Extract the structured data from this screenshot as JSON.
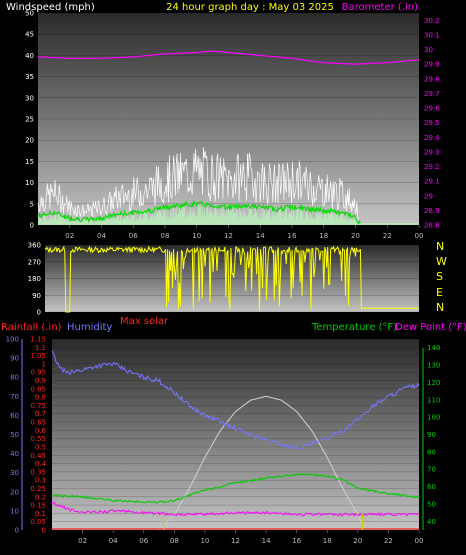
{
  "header": {
    "left_label": "Windspeed (mph)",
    "center_label": "24 hour graph day : May 03 2025",
    "right_label": "Barometer (.in)"
  },
  "bottom_header": {
    "rainfall_label": "Rainfall (.in)",
    "humidity_label": "Humidity",
    "max_solar_label": "Max solar",
    "temperature_label": "Temperature (°F)",
    "dewpoint_label": "Dew Point (°F)"
  },
  "compass": [
    "N",
    "W",
    "S",
    "E",
    "N"
  ],
  "colors": {
    "windspeed": "#ffffff",
    "gust": "#c8c8c8",
    "wind_avg": "#00dd00",
    "wind_fill": "#b8f0b8",
    "barometer": "#ff00ff",
    "direction": "#ffff00",
    "rainfall": "#ff2222",
    "humidity": "#7777ff",
    "temperature": "#00cc00",
    "dewpoint": "#ff00ff",
    "solar": "#cccccc"
  },
  "chart_data": [
    {
      "type": "line",
      "x_ticks": [
        "02",
        "04",
        "06",
        "08",
        "10",
        "12",
        "14",
        "16",
        "18",
        "20",
        "22",
        "00"
      ],
      "y_left_ticks": [
        "0",
        "5",
        "10",
        "15",
        "20",
        "25",
        "30",
        "35",
        "40",
        "45",
        "50"
      ],
      "y_right_ticks": [
        "28.8",
        "28.9",
        "29",
        "29.1",
        "29.2",
        "29.3",
        "29.4",
        "29.5",
        "29.6",
        "29.7",
        "29.8",
        "29.9",
        "30",
        "30.1",
        "30.2"
      ],
      "ylim_left": [
        0,
        50
      ],
      "ylim_right": [
        28.8,
        30.25
      ],
      "xlim": [
        0,
        24
      ],
      "series": [
        {
          "name": "Windspeed",
          "x": [
            0,
            1,
            2,
            3,
            4,
            5,
            6,
            7,
            8,
            9,
            10,
            11,
            12,
            13,
            14,
            15,
            16,
            17,
            18,
            19,
            20,
            20.3
          ],
          "values": [
            5,
            7,
            4,
            3,
            4,
            6,
            7,
            8,
            10,
            11,
            12,
            11,
            10,
            11,
            10,
            9,
            10,
            9,
            8,
            7,
            5,
            0
          ]
        },
        {
          "name": "Barometer",
          "x": [
            0,
            2,
            4,
            6,
            8,
            10,
            11,
            12,
            14,
            16,
            18,
            20,
            22,
            24
          ],
          "values": [
            29.95,
            29.94,
            29.94,
            29.95,
            29.97,
            29.98,
            29.99,
            29.98,
            29.96,
            29.94,
            29.91,
            29.9,
            29.91,
            29.93
          ]
        }
      ]
    },
    {
      "type": "line",
      "y_ticks": [
        "0",
        "90",
        "180",
        "270",
        "360"
      ],
      "ylim": [
        0,
        360
      ],
      "xlim": [
        0,
        24
      ],
      "series": [
        {
          "name": "Wind direction",
          "x": [
            0,
            1.3,
            1.5,
            2,
            3,
            4,
            5,
            6,
            7,
            8,
            9,
            10,
            11,
            12,
            13,
            14,
            15,
            16,
            17,
            18,
            19,
            20,
            20.3,
            24
          ],
          "values": [
            330,
            340,
            0,
            330,
            330,
            325,
            330,
            340,
            330,
            180,
            330,
            200,
            330,
            150,
            330,
            250,
            330,
            160,
            330,
            200,
            330,
            330,
            20,
            20
          ]
        }
      ]
    },
    {
      "type": "line",
      "x_ticks": [
        "02",
        "04",
        "06",
        "08",
        "10",
        "12",
        "14",
        "16",
        "18",
        "20",
        "22",
        "00"
      ],
      "y_left_ticks": [
        "0",
        "10",
        "20",
        "30",
        "40",
        "50",
        "60",
        "70",
        "80",
        "90",
        "100"
      ],
      "y_rain_ticks": [
        "0",
        "0.05",
        "0.1",
        "0.15",
        "0.2",
        "0.25",
        "0.3",
        "0.35",
        "0.4",
        "0.45",
        "0.5",
        "0.55",
        "0.6",
        "0.65",
        "0.7",
        "0.75",
        "0.8",
        "0.85",
        "0.9",
        "0.95",
        "1",
        "1.05",
        "1.1",
        "1.15"
      ],
      "y_right_ticks": [
        "40",
        "50",
        "60",
        "70",
        "80",
        "90",
        "100",
        "110",
        "120",
        "130",
        "140"
      ],
      "ylim_humidity": [
        0,
        100
      ],
      "ylim_rain": [
        0,
        1.15
      ],
      "ylim_temp": [
        35,
        145
      ],
      "xlim": [
        0,
        24
      ],
      "series": [
        {
          "name": "Humidity",
          "x": [
            0,
            0.5,
            1,
            2,
            3,
            4,
            5,
            6,
            7,
            8,
            9,
            10,
            11,
            12,
            13,
            14,
            15,
            16,
            17,
            18,
            19,
            20,
            21,
            22,
            23,
            24
          ],
          "values": [
            93,
            85,
            82,
            84,
            86,
            87,
            83,
            80,
            78,
            72,
            65,
            60,
            57,
            53,
            50,
            47,
            45,
            43,
            45,
            48,
            52,
            58,
            65,
            70,
            74,
            76
          ]
        },
        {
          "name": "Temperature",
          "x": [
            0,
            2,
            4,
            6,
            7,
            8,
            10,
            12,
            14,
            16,
            17,
            18,
            19,
            20,
            22,
            24
          ],
          "values": [
            55,
            54,
            52,
            51,
            51,
            52,
            58,
            62,
            65,
            67,
            67,
            66,
            64,
            59,
            56,
            54
          ]
        },
        {
          "name": "Dew Point",
          "x": [
            0,
            1,
            2,
            4,
            6,
            8,
            10,
            12,
            14,
            16,
            18,
            20,
            22,
            24
          ],
          "values": [
            51,
            47,
            45,
            46,
            45,
            44,
            44,
            45,
            45,
            44,
            44,
            44,
            44,
            44
          ]
        },
        {
          "name": "Max solar",
          "x": [
            7,
            8,
            9,
            10,
            11,
            12,
            13,
            14,
            15,
            16,
            17,
            18,
            19,
            20,
            20.5
          ],
          "values": [
            0,
            8,
            22,
            38,
            52,
            62,
            68,
            70,
            68,
            62,
            52,
            38,
            22,
            8,
            0
          ]
        },
        {
          "name": "Rainfall",
          "x": [
            0,
            24
          ],
          "values": [
            0,
            0
          ]
        }
      ],
      "markers_x": [
        7.3,
        20.3
      ]
    }
  ]
}
